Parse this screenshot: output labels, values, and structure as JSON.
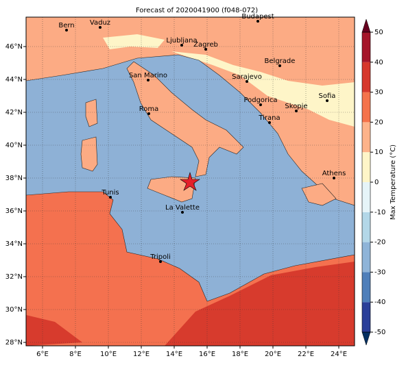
{
  "title": "Forecast of 2020041900 (f048-072)",
  "cities": [
    {
      "name": "Bern"
    },
    {
      "name": "Vaduz"
    },
    {
      "name": "Budapest"
    },
    {
      "name": "Ljubljana"
    },
    {
      "name": "Zagreb"
    },
    {
      "name": "Belgrade"
    },
    {
      "name": "San Marino"
    },
    {
      "name": "Sarajevo"
    },
    {
      "name": "Sofia"
    },
    {
      "name": "Podgorica"
    },
    {
      "name": "Skopje"
    },
    {
      "name": "Roma"
    },
    {
      "name": "Tirana"
    },
    {
      "name": "Athens"
    },
    {
      "name": "Tunis"
    },
    {
      "name": "La Valette"
    },
    {
      "name": "Tripoli"
    }
  ],
  "xticks": [
    {
      "value": 6,
      "label": "6°E"
    },
    {
      "value": 8,
      "label": "8°E"
    },
    {
      "value": 10,
      "label": "10°E"
    },
    {
      "value": 12,
      "label": "12°E"
    },
    {
      "value": 14,
      "label": "14°E"
    },
    {
      "value": 16,
      "label": "16°E"
    },
    {
      "value": 18,
      "label": "18°E"
    },
    {
      "value": 20,
      "label": "20°E"
    },
    {
      "value": 22,
      "label": "22°E"
    },
    {
      "value": 24,
      "label": "24°E"
    }
  ],
  "yticks": [
    {
      "value": 28,
      "label": "28°N"
    },
    {
      "value": 30,
      "label": "30°N"
    },
    {
      "value": 32,
      "label": "32°N"
    },
    {
      "value": 34,
      "label": "34°N"
    },
    {
      "value": 36,
      "label": "36°N"
    },
    {
      "value": 38,
      "label": "38°N"
    },
    {
      "value": 40,
      "label": "40°N"
    },
    {
      "value": 42,
      "label": "42°N"
    },
    {
      "value": 44,
      "label": "44°N"
    },
    {
      "value": 46,
      "label": "46°N"
    }
  ],
  "colorbar": {
    "label": "Max Temperature (°C)",
    "ticks": [
      -50,
      -40,
      -30,
      -20,
      -10,
      0,
      10,
      20,
      30,
      40,
      50
    ],
    "colors": [
      "#2b3f99",
      "#4f7fba",
      "#8fb4d8",
      "#b3d7e8",
      "#e6f4f8",
      "#fef5c8",
      "#fdb38a",
      "#f4734b",
      "#d6382c",
      "#a5162a"
    ]
  }
}
